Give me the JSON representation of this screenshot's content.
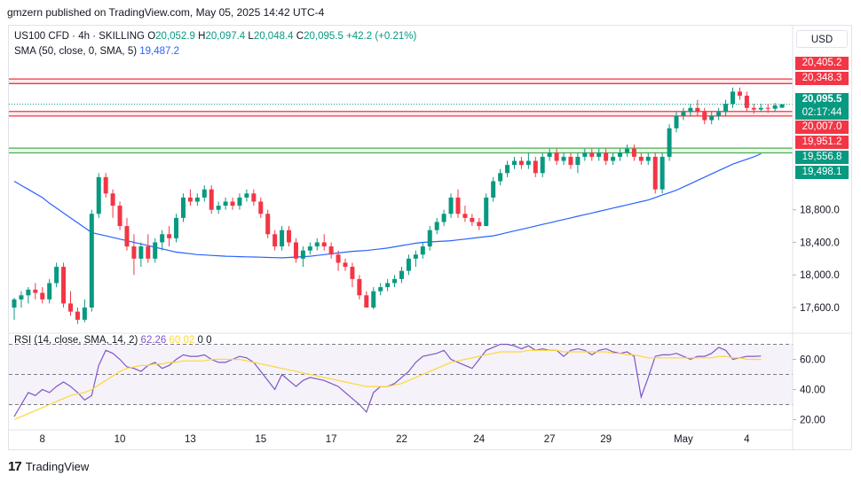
{
  "header": {
    "published_text": "gmzern published on TradingView.com, May 05, 2025 14:42 UTC-4"
  },
  "legend": {
    "symbol": "US100 CFD · 4h · SKILLING",
    "open_label": "O",
    "open": "20,052.9",
    "high_label": "H",
    "high": "20,097.4",
    "low_label": "L",
    "low": "20,048.4",
    "close_label": "C",
    "close": "20,095.5",
    "change": "+42.2 (+0.21%)",
    "sma_label": "SMA (50, close, 0, SMA, 5)",
    "sma_value": "19,487.2",
    "rsi_label": "RSI (14, close, SMA, 14, 2)",
    "rsi_value": "62.26",
    "rsi_ma_value": "60.02",
    "rsi_extra1": "0",
    "rsi_extra2": "0"
  },
  "currency_button": "USD",
  "price_tags": [
    {
      "text": "20,405.2",
      "color": "#f23645"
    },
    {
      "text": "20,348.3",
      "color": "#f23645"
    },
    {
      "text": "20,095.5",
      "color": "#089981"
    },
    {
      "text": "02:17:44",
      "color": "#089981"
    },
    {
      "text": "20,007.0",
      "color": "#f23645"
    },
    {
      "text": "19,951.2",
      "color": "#f23645"
    },
    {
      "text": "19,556.8",
      "color": "#089981"
    },
    {
      "text": "19,498.1",
      "color": "#089981"
    }
  ],
  "footer": {
    "brand": "TradingView",
    "logo": "17"
  },
  "colors": {
    "up": "#089981",
    "down": "#f23645",
    "sma": "#2962ff",
    "rsi": "#7e57c2",
    "rsi_ma": "#fdd835",
    "res_band": "#f23645",
    "sup_band": "#4caf50"
  },
  "chart_data": [
    {
      "type": "candlestick",
      "title": "US100 CFD · 4h · SKILLING",
      "xlabel": "",
      "ylabel": "",
      "y_ticks": [
        17600,
        18000,
        18400,
        18800
      ],
      "y_tick_labels": [
        "17,600.0",
        "18,000.0",
        "18,400.0",
        "18,800.0"
      ],
      "ylim": [
        17350,
        20700
      ],
      "x_tick_labels": [
        "8",
        "10",
        "13",
        "15",
        "17",
        "22",
        "24",
        "27",
        "29",
        "May",
        "4"
      ],
      "x_tick_index": [
        4,
        15,
        25,
        35,
        45,
        55,
        66,
        76,
        84,
        95,
        104
      ],
      "horizontal_lines": [
        {
          "name": "resistance",
          "values": [
            20405.2,
            20348.3
          ]
        },
        {
          "name": "resistance",
          "values": [
            20007.0,
            19951.2
          ]
        },
        {
          "name": "support",
          "values": [
            19556.8,
            19498.1
          ]
        },
        {
          "name": "last price",
          "values": [
            20095.5
          ]
        }
      ],
      "candles": [
        [
          17600,
          17720,
          17450,
          17700
        ],
        [
          17700,
          17800,
          17600,
          17750
        ],
        [
          17750,
          17850,
          17650,
          17820
        ],
        [
          17820,
          17900,
          17700,
          17780
        ],
        [
          17780,
          17850,
          17650,
          17700
        ],
        [
          17700,
          17950,
          17650,
          17900
        ],
        [
          17900,
          18150,
          17850,
          18100
        ],
        [
          18100,
          18150,
          17600,
          17650
        ],
        [
          17650,
          17800,
          17500,
          17550
        ],
        [
          17550,
          17600,
          17400,
          17450
        ],
        [
          17450,
          17700,
          17420,
          17600
        ],
        [
          17600,
          18800,
          17550,
          18750
        ],
        [
          18750,
          19250,
          18700,
          19200
        ],
        [
          19200,
          19250,
          18950,
          19000
        ],
        [
          19000,
          19050,
          18700,
          18850
        ],
        [
          18850,
          18900,
          18550,
          18600
        ],
        [
          18600,
          18700,
          18300,
          18350
        ],
        [
          18350,
          18500,
          18000,
          18200
        ],
        [
          18200,
          18400,
          18100,
          18350
        ],
        [
          18350,
          18500,
          18150,
          18200
        ],
        [
          18200,
          18450,
          18150,
          18400
        ],
        [
          18400,
          18550,
          18300,
          18500
        ],
        [
          18500,
          18600,
          18350,
          18450
        ],
        [
          18450,
          18750,
          18400,
          18700
        ],
        [
          18700,
          19000,
          18650,
          18950
        ],
        [
          18950,
          19050,
          18850,
          18900
        ],
        [
          18900,
          19000,
          18850,
          18950
        ],
        [
          18950,
          19100,
          18900,
          19050
        ],
        [
          19050,
          19100,
          18750,
          18800
        ],
        [
          18800,
          18900,
          18750,
          18850
        ],
        [
          18850,
          18950,
          18800,
          18900
        ],
        [
          18900,
          18950,
          18800,
          18850
        ],
        [
          18850,
          19000,
          18800,
          18950
        ],
        [
          18950,
          19050,
          18900,
          19000
        ],
        [
          19000,
          19050,
          18850,
          18900
        ],
        [
          18900,
          18950,
          18700,
          18750
        ],
        [
          18750,
          18800,
          18450,
          18500
        ],
        [
          18500,
          18550,
          18300,
          18350
        ],
        [
          18350,
          18600,
          18300,
          18550
        ],
        [
          18550,
          18600,
          18350,
          18400
        ],
        [
          18400,
          18450,
          18150,
          18200
        ],
        [
          18200,
          18350,
          18100,
          18300
        ],
        [
          18300,
          18400,
          18250,
          18350
        ],
        [
          18350,
          18450,
          18300,
          18400
        ],
        [
          18400,
          18500,
          18300,
          18350
        ],
        [
          18350,
          18400,
          18200,
          18250
        ],
        [
          18250,
          18300,
          18050,
          18150
        ],
        [
          18150,
          18200,
          18050,
          18100
        ],
        [
          18100,
          18150,
          17850,
          17950
        ],
        [
          17950,
          18000,
          17700,
          17750
        ],
        [
          17750,
          17800,
          17600,
          17600
        ],
        [
          17600,
          17850,
          17580,
          17800
        ],
        [
          17800,
          17900,
          17750,
          17850
        ],
        [
          17850,
          17950,
          17800,
          17900
        ],
        [
          17900,
          18000,
          17850,
          17950
        ],
        [
          17950,
          18100,
          17900,
          18050
        ],
        [
          18050,
          18250,
          18000,
          18200
        ],
        [
          18200,
          18300,
          18100,
          18250
        ],
        [
          18250,
          18400,
          18200,
          18350
        ],
        [
          18350,
          18600,
          18300,
          18550
        ],
        [
          18550,
          18700,
          18500,
          18650
        ],
        [
          18650,
          18800,
          18600,
          18750
        ],
        [
          18750,
          19000,
          18700,
          18950
        ],
        [
          18950,
          19050,
          18700,
          18750
        ],
        [
          18750,
          18850,
          18650,
          18700
        ],
        [
          18700,
          18750,
          18600,
          18650
        ],
        [
          18650,
          18700,
          18550,
          18600
        ],
        [
          18600,
          19000,
          18600,
          18950
        ],
        [
          18950,
          19200,
          18900,
          19150
        ],
        [
          19150,
          19300,
          19100,
          19250
        ],
        [
          19250,
          19400,
          19200,
          19350
        ],
        [
          19350,
          19450,
          19300,
          19400
        ],
        [
          19400,
          19450,
          19300,
          19350
        ],
        [
          19350,
          19500,
          19300,
          19400
        ],
        [
          19400,
          19450,
          19200,
          19250
        ],
        [
          19250,
          19500,
          19200,
          19450
        ],
        [
          19450,
          19550,
          19400,
          19500
        ],
        [
          19500,
          19550,
          19350,
          19400
        ],
        [
          19400,
          19500,
          19350,
          19450
        ],
        [
          19450,
          19500,
          19300,
          19350
        ],
        [
          19350,
          19500,
          19250,
          19450
        ],
        [
          19450,
          19550,
          19400,
          19500
        ],
        [
          19500,
          19550,
          19400,
          19450
        ],
        [
          19450,
          19550,
          19400,
          19500
        ],
        [
          19500,
          19550,
          19350,
          19400
        ],
        [
          19400,
          19500,
          19350,
          19450
        ],
        [
          19450,
          19550,
          19400,
          19500
        ],
        [
          19500,
          19600,
          19450,
          19550
        ],
        [
          19550,
          19600,
          19400,
          19450
        ],
        [
          19450,
          19500,
          19350,
          19400
        ],
        [
          19400,
          19500,
          19350,
          19450
        ],
        [
          19450,
          19500,
          19000,
          19050
        ],
        [
          19050,
          19500,
          19000,
          19450
        ],
        [
          19450,
          19850,
          19400,
          19800
        ],
        [
          19800,
          20000,
          19750,
          19950
        ],
        [
          19950,
          20050,
          19900,
          20000
        ],
        [
          20000,
          20100,
          19950,
          20050
        ],
        [
          20050,
          20150,
          19950,
          20000
        ],
        [
          20000,
          20050,
          19850,
          19900
        ],
        [
          19900,
          20000,
          19850,
          19950
        ],
        [
          19950,
          20050,
          19900,
          20000
        ],
        [
          20000,
          20150,
          19950,
          20100
        ],
        [
          20100,
          20300,
          20050,
          20250
        ],
        [
          20250,
          20300,
          20150,
          20200
        ],
        [
          20200,
          20250,
          20000,
          20050
        ],
        [
          20050,
          20100,
          19980,
          20030
        ],
        [
          20030,
          20100,
          20000,
          20050
        ],
        [
          20050,
          20100,
          19990,
          20040
        ],
        [
          20040,
          20110,
          20000,
          20080
        ],
        [
          20052.9,
          20097.4,
          20048.4,
          20095.5
        ]
      ],
      "sma": [
        19150,
        19100,
        19050,
        19000,
        18950,
        18880,
        18820,
        18760,
        18700,
        18640,
        18580,
        18520,
        18500,
        18480,
        18460,
        18440,
        18420,
        18400,
        18380,
        18360,
        18340,
        18320,
        18300,
        18280,
        18270,
        18260,
        18250,
        18245,
        18240,
        18235,
        18230,
        18228,
        18225,
        18222,
        18220,
        18218,
        18215,
        18213,
        18210,
        18215,
        18220,
        18225,
        18230,
        18240,
        18250,
        18260,
        18270,
        18280,
        18290,
        18295,
        18300,
        18310,
        18320,
        18330,
        18345,
        18360,
        18375,
        18390,
        18400,
        18405,
        18410,
        18415,
        18420,
        18430,
        18440,
        18450,
        18460,
        18470,
        18480,
        18500,
        18520,
        18540,
        18560,
        18580,
        18600,
        18620,
        18640,
        18660,
        18680,
        18700,
        18720,
        18740,
        18760,
        18780,
        18800,
        18820,
        18840,
        18860,
        18880,
        18900,
        18920,
        18950,
        18980,
        19010,
        19040,
        19080,
        19120,
        19160,
        19200,
        19240,
        19280,
        19320,
        19360,
        19390,
        19420,
        19450,
        19487.2
      ]
    },
    {
      "type": "line",
      "title": "RSI (14, close, SMA, 14, 2)",
      "xlabel": "",
      "ylabel": "",
      "y_ticks": [
        20,
        40,
        60
      ],
      "y_tick_labels": [
        "20.00",
        "40.00",
        "60.00"
      ],
      "ylim": [
        15,
        75
      ],
      "bands": [
        30,
        50,
        70
      ],
      "series": [
        {
          "name": "RSI",
          "values": [
            22,
            30,
            38,
            36,
            40,
            38,
            42,
            45,
            42,
            38,
            33,
            36,
            56,
            66,
            64,
            60,
            55,
            54,
            52,
            56,
            58,
            54,
            56,
            60,
            63,
            62,
            62,
            63,
            60,
            58,
            58,
            60,
            62,
            61,
            58,
            52,
            46,
            40,
            50,
            46,
            42,
            46,
            48,
            47,
            46,
            44,
            42,
            38,
            34,
            30,
            25,
            38,
            42,
            42,
            44,
            48,
            52,
            58,
            62,
            63,
            64,
            66,
            60,
            58,
            56,
            54,
            60,
            66,
            68,
            70,
            70,
            69,
            67,
            69,
            66,
            67,
            66,
            66,
            62,
            66,
            67,
            66,
            63,
            66,
            67,
            65,
            64,
            65,
            62,
            35,
            48,
            62,
            63,
            63,
            64,
            62,
            60,
            62,
            62,
            64,
            68,
            66,
            60,
            61,
            62,
            62,
            62.26
          ]
        },
        {
          "name": "RSI-based MA",
          "values": [
            20,
            22,
            24,
            26,
            28,
            30,
            32,
            34,
            36,
            37,
            38,
            40,
            43,
            46,
            49,
            52,
            54,
            55,
            56,
            56,
            57,
            57,
            58,
            58,
            59,
            59,
            59,
            59,
            60,
            60,
            60,
            60,
            60,
            59,
            58,
            57,
            56,
            55,
            54,
            53,
            52,
            51,
            50,
            49,
            48,
            47,
            46,
            45,
            44,
            43,
            42,
            42,
            42,
            42,
            43,
            44,
            46,
            48,
            50,
            52,
            54,
            56,
            58,
            59,
            60,
            61,
            62,
            63,
            64,
            65,
            65,
            65,
            65,
            66,
            66,
            66,
            66,
            66,
            65,
            65,
            65,
            65,
            65,
            65,
            65,
            64,
            64,
            63,
            63,
            62,
            61,
            61,
            61,
            61,
            61,
            61,
            61,
            61,
            61,
            61,
            62,
            62,
            61,
            61,
            60,
            60,
            60.02
          ]
        }
      ],
      "current_value": 62.26
    }
  ]
}
